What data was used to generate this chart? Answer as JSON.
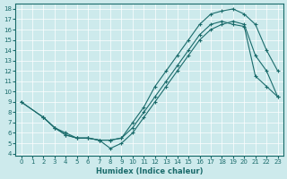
{
  "xlabel": "Humidex (Indice chaleur)",
  "bg_color": "#cdeaec",
  "line_color": "#1a6b6b",
  "xlim": [
    -0.5,
    23.5
  ],
  "ylim": [
    3.8,
    18.5
  ],
  "xticks": [
    0,
    1,
    2,
    3,
    4,
    5,
    6,
    7,
    8,
    9,
    10,
    11,
    12,
    13,
    14,
    15,
    16,
    17,
    18,
    19,
    20,
    21,
    22,
    23
  ],
  "yticks": [
    4,
    5,
    6,
    7,
    8,
    9,
    10,
    11,
    12,
    13,
    14,
    15,
    16,
    17,
    18
  ],
  "line1_x": [
    0,
    2,
    3,
    4,
    5,
    6,
    7,
    8,
    9,
    10,
    11,
    12,
    13,
    14,
    15,
    16,
    17,
    18,
    19,
    20,
    21,
    22,
    23
  ],
  "line1_y": [
    9,
    7.5,
    6.5,
    5.8,
    5.5,
    5.5,
    5.3,
    5.3,
    5.5,
    7.0,
    8.5,
    10.5,
    12.0,
    13.5,
    15.0,
    16.5,
    17.5,
    17.8,
    18.0,
    17.5,
    16.5,
    14.0,
    12.0
  ],
  "line2_x": [
    0,
    2,
    3,
    4,
    5,
    6,
    7,
    8,
    9,
    10,
    11,
    12,
    13,
    14,
    15,
    16,
    17,
    18,
    19,
    20,
    21,
    22,
    23
  ],
  "line2_y": [
    9,
    7.5,
    6.5,
    6.0,
    5.5,
    5.5,
    5.3,
    5.3,
    5.5,
    6.5,
    8.0,
    9.5,
    11.0,
    12.5,
    14.0,
    15.5,
    16.5,
    16.8,
    16.5,
    16.3,
    11.5,
    10.5,
    9.5
  ],
  "line3_x": [
    2,
    3,
    4,
    5,
    6,
    7,
    8,
    9,
    10,
    11,
    12,
    13,
    14,
    15,
    16,
    17,
    18,
    19,
    20,
    21,
    22,
    23
  ],
  "line3_y": [
    7.5,
    6.5,
    5.8,
    5.5,
    5.5,
    5.3,
    4.5,
    5.0,
    6.0,
    7.5,
    9.0,
    10.5,
    12.0,
    13.5,
    15.0,
    16.0,
    16.5,
    16.8,
    16.5,
    13.5,
    12.0,
    9.5
  ]
}
